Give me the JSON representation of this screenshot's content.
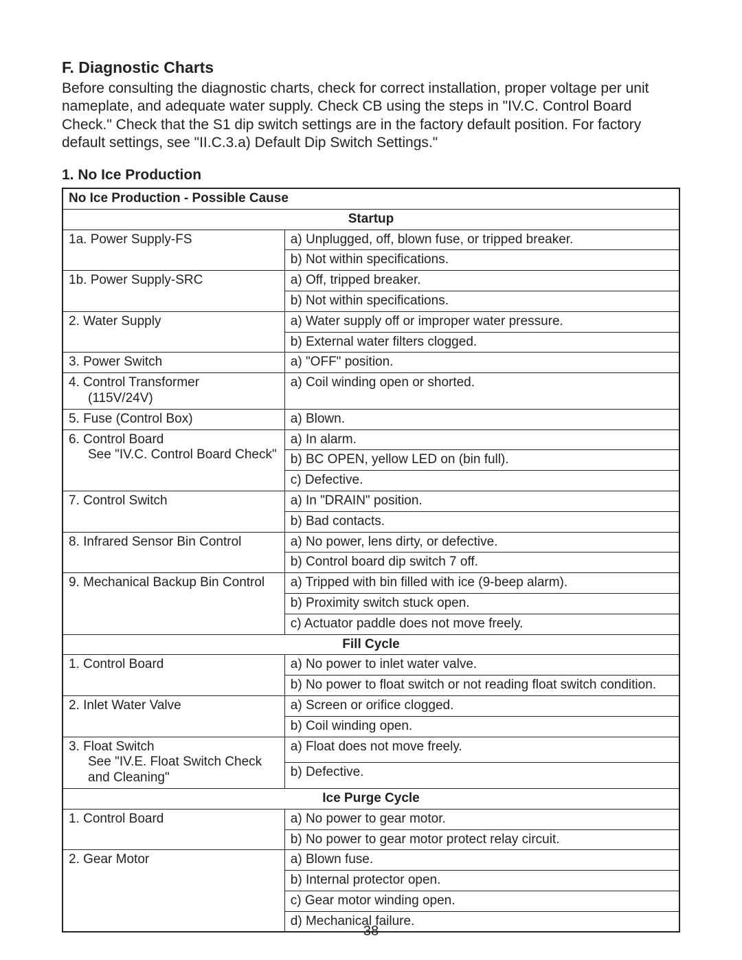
{
  "page_number": "38",
  "heading_main": "F. Diagnostic Charts",
  "intro_text": "Before consulting the diagnostic charts, check for correct installation, proper voltage per unit nameplate, and adequate water supply. Check CB using the steps in \"IV.C. Control Board Check.\" Check that the S1 dip switch settings are in the factory default position. For factory default settings, see \"II.C.3.a) Default Dip Switch Settings.\"",
  "heading_sub": "1. No Ice Production",
  "table_title": "No Ice Production - Possible Cause",
  "sections": {
    "startup": {
      "label": "Startup",
      "rows": [
        {
          "left": "1a. Power Supply-FS",
          "rights": [
            "a) Unplugged, off, blown fuse, or tripped breaker.",
            "b) Not within specifications."
          ]
        },
        {
          "left": "1b. Power Supply-SRC",
          "rights": [
            "a) Off, tripped breaker.",
            "b) Not within specifications."
          ]
        },
        {
          "left": "2. Water Supply",
          "rights": [
            "a) Water supply off or improper water pressure.",
            "b) External water filters clogged."
          ]
        },
        {
          "left": "3. Power Switch",
          "rights": [
            "a) \"OFF\" position."
          ]
        },
        {
          "left": "4. Control Transformer",
          "left_sub": "(115V/24V)",
          "rights": [
            "a) Coil winding open or shorted."
          ]
        },
        {
          "left": "5. Fuse (Control Box)",
          "rights": [
            "a) Blown."
          ]
        },
        {
          "left": "6. Control Board",
          "left_sub": "See \"IV.C. Control Board Check\"",
          "rights": [
            "a) In alarm.",
            "b) BC OPEN, yellow LED on (bin full).",
            "c) Defective."
          ]
        },
        {
          "left": "7. Control Switch",
          "rights": [
            "a) In \"DRAIN\" position.",
            "b) Bad contacts."
          ]
        },
        {
          "left": "8. Infrared Sensor Bin Control",
          "rights": [
            "a) No power, lens dirty, or defective.",
            "b) Control board dip switch 7 off."
          ]
        },
        {
          "left": "9. Mechanical Backup Bin Control",
          "rights": [
            "a) Tripped with bin filled with ice (9-beep alarm).",
            "b) Proximity switch stuck open.",
            "c) Actuator paddle does not move freely."
          ]
        }
      ]
    },
    "fill": {
      "label": "Fill Cycle",
      "rows": [
        {
          "left": "1. Control Board",
          "rights": [
            "a) No power to inlet water valve.",
            "b) No power to float switch or not reading float switch condition."
          ]
        },
        {
          "left": "2. Inlet Water Valve",
          "rights": [
            "a) Screen or orifice clogged.",
            "b) Coil winding open."
          ]
        },
        {
          "left": "3. Float Switch",
          "left_sub": "See \"IV.E. Float Switch Check and Cleaning\"",
          "rights": [
            "a) Float does not move freely.",
            "b) Defective."
          ]
        }
      ]
    },
    "purge": {
      "label": "Ice Purge Cycle",
      "rows": [
        {
          "left": "1. Control Board",
          "rights": [
            "a) No power to gear motor.",
            "b) No power to gear motor protect relay circuit."
          ]
        },
        {
          "left": "2. Gear Motor",
          "rights": [
            "a) Blown fuse.",
            "b) Internal protector open.",
            "c) Gear motor winding open.",
            "d) Mechanical failure."
          ]
        }
      ]
    }
  }
}
